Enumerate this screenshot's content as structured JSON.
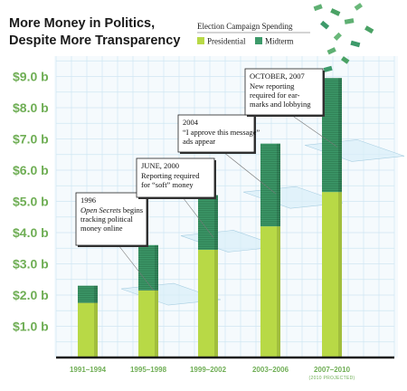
{
  "title": [
    "More Money in Politics,",
    "Despite More Transparency"
  ],
  "legend": {
    "title": "Election Campaign Spending",
    "items": [
      {
        "label": "Presidential",
        "color": "#b8d946"
      },
      {
        "label": "Midterm",
        "color": "#3d9a6a"
      }
    ]
  },
  "colors": {
    "presidential": "#b8d946",
    "midterm": "#3d9a6a",
    "axis_text": "#6fae55",
    "grid": "#cfe6f2",
    "plane": "#d9eef8"
  },
  "chart_data": {
    "type": "bar",
    "stacked": true,
    "categories": [
      "1991–1994",
      "1995–1998",
      "1999–2002",
      "2003–2006",
      "2007–2010"
    ],
    "category_notes": [
      "",
      "",
      "",
      "",
      "(2010 PROJECTED)"
    ],
    "series": [
      {
        "name": "Presidential",
        "values": [
          1.75,
          2.15,
          3.45,
          4.2,
          5.3
        ]
      },
      {
        "name": "Midterm",
        "values": [
          0.55,
          1.45,
          1.75,
          2.65,
          3.65
        ]
      }
    ],
    "y_tick_labels": [
      "$1.0 b",
      "$2.0 b",
      "$3.0 b",
      "$4.0 b",
      "$5.0 b",
      "$6.0 b",
      "$7.0 b",
      "$8.0 b",
      "$9.0 b"
    ],
    "ylim": [
      0,
      10
    ],
    "grid": true,
    "legend_position": "top-right",
    "annotations": [
      {
        "date": "1996",
        "lines": [
          [
            "Open Secrets",
            " begins"
          ],
          [
            "tracking political"
          ],
          [
            "money online"
          ]
        ],
        "italic_first": true,
        "category": 1,
        "level": 2.2
      },
      {
        "date": "JUNE, 2000",
        "lines": [
          [
            "Reporting required"
          ],
          [
            "for “soft” money"
          ]
        ],
        "italic_first": false,
        "category": 2,
        "level": 3.9
      },
      {
        "date": "2004",
        "lines": [
          [
            "“I approve this message”"
          ],
          [
            "ads appear"
          ]
        ],
        "italic_first": false,
        "category": 3,
        "level": 5.3
      },
      {
        "date": "OCTOBER, 2007",
        "lines": [
          [
            "New reporting"
          ],
          [
            "required for ear-"
          ],
          [
            "marks and lobbying"
          ]
        ],
        "italic_first": false,
        "category": 4,
        "level": 6.8
      }
    ]
  }
}
